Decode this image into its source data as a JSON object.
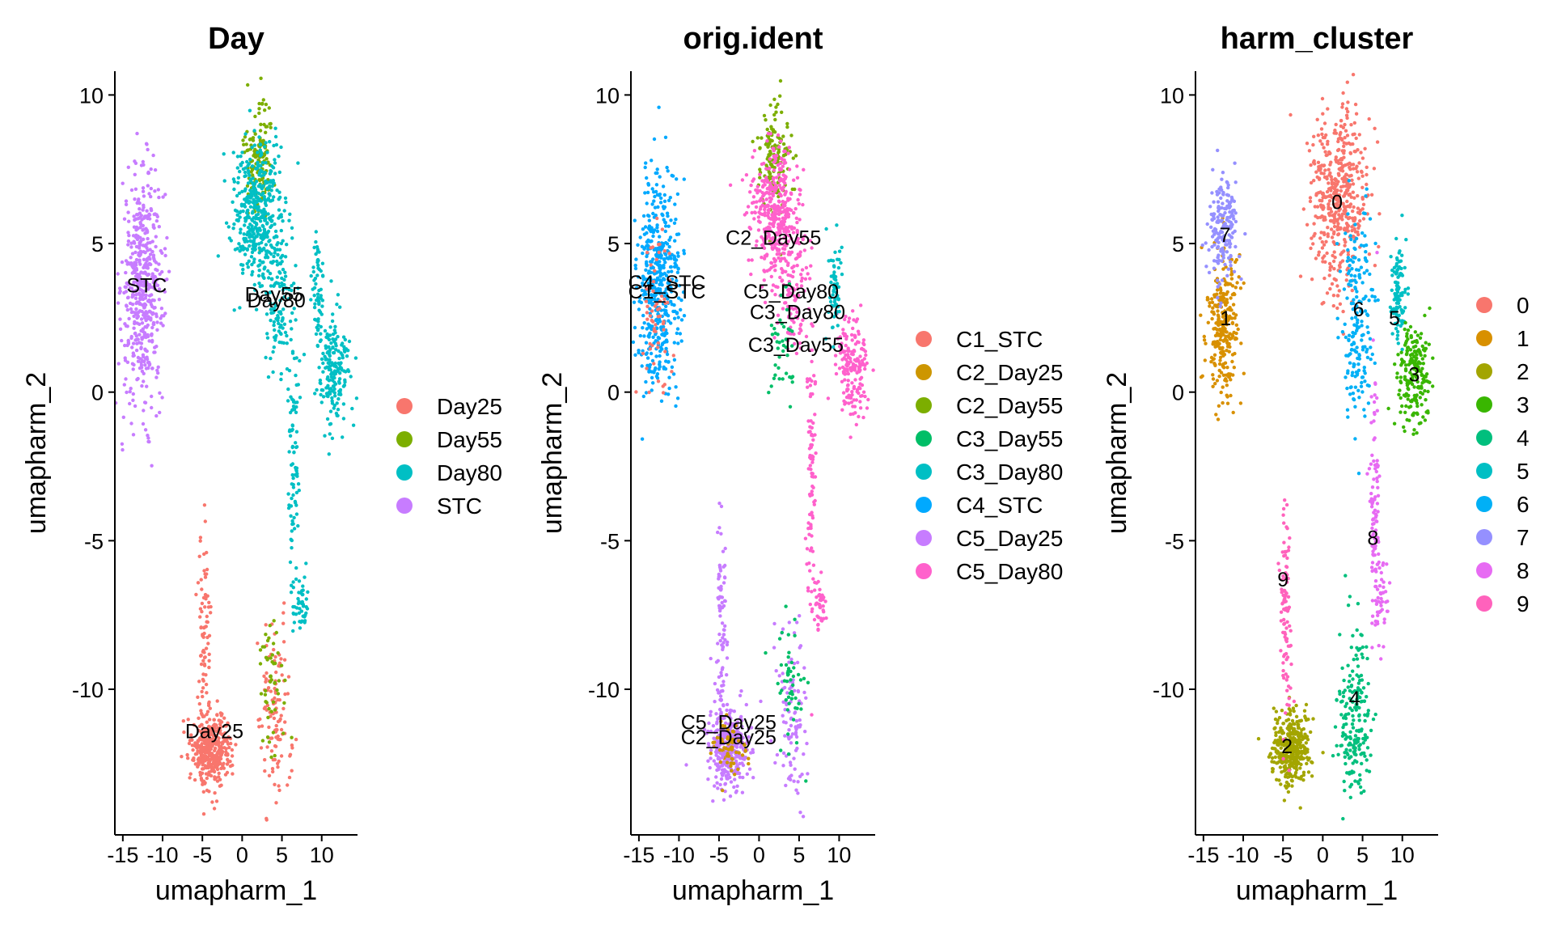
{
  "figure": {
    "x_label": "umapharm_1",
    "y_label": "umapharm_2"
  },
  "chart_data": [
    {
      "type": "scatter",
      "title": "Day",
      "xlabel": "umapharm_1",
      "ylabel": "umapharm_2",
      "xlim": [
        -16,
        14.5
      ],
      "ylim": [
        -14.9,
        10.8
      ],
      "xticks": [
        -15,
        -10,
        -5,
        0,
        5,
        10
      ],
      "yticks": [
        -10,
        -5,
        0,
        5,
        10
      ],
      "legend_position": "right",
      "legend": [
        {
          "name": "Day25",
          "color": "#F8766D"
        },
        {
          "name": "Day55",
          "color": "#7CAE00"
        },
        {
          "name": "Day80",
          "color": "#00BFC4"
        },
        {
          "name": "STC",
          "color": "#C77CFF"
        }
      ],
      "clusters": [
        {
          "group": "STC",
          "cx": -12.5,
          "cy": 3.5,
          "sx": 1.3,
          "sy": 1.9,
          "n": 520
        },
        {
          "group": "Day25",
          "cx": -3.8,
          "cy": -12.0,
          "sx": 1.2,
          "sy": 0.6,
          "n": 380
        },
        {
          "group": "Day25",
          "cx": -4.7,
          "cy": -8.5,
          "sx": 0.4,
          "sy": 1.9,
          "n": 90
        },
        {
          "group": "Day25",
          "cx": 4.2,
          "cy": -11.0,
          "sx": 1.0,
          "sy": 1.5,
          "n": 120
        },
        {
          "group": "Day55",
          "cx": 3.8,
          "cy": -9.8,
          "sx": 1.0,
          "sy": 1.2,
          "n": 50
        },
        {
          "group": "Day55",
          "cx": 2.0,
          "cy": 8.0,
          "sx": 0.9,
          "sy": 1.0,
          "n": 150
        },
        {
          "group": "Day80",
          "cx": 2.0,
          "cy": 6.0,
          "sx": 1.6,
          "sy": 1.2,
          "n": 420
        },
        {
          "group": "Day80",
          "cx": 4.5,
          "cy": 3.2,
          "sx": 0.9,
          "sy": 1.3,
          "n": 120
        },
        {
          "group": "Day80",
          "cx": 11.5,
          "cy": 0.8,
          "sx": 1.0,
          "sy": 0.9,
          "n": 190
        },
        {
          "group": "Day80",
          "cx": 9.5,
          "cy": 3.5,
          "sx": 0.4,
          "sy": 0.8,
          "n": 60
        },
        {
          "group": "Day80",
          "cx": 6.5,
          "cy": -3.0,
          "sx": 0.3,
          "sy": 2.5,
          "n": 90
        },
        {
          "group": "Day80",
          "cx": 7.5,
          "cy": -7.2,
          "sx": 0.4,
          "sy": 0.6,
          "n": 40
        }
      ],
      "labels": [
        {
          "text": "STC",
          "x": -12.0,
          "y": 3.6
        },
        {
          "text": "Day55",
          "x": 4.0,
          "y": 3.3
        },
        {
          "text": "Day80",
          "x": 4.3,
          "y": 3.1
        },
        {
          "text": "Day25",
          "x": -3.5,
          "y": -11.4
        }
      ]
    },
    {
      "type": "scatter",
      "title": "orig.ident",
      "xlabel": "umapharm_1",
      "ylabel": "umapharm_2",
      "xlim": [
        -16,
        14.5
      ],
      "ylim": [
        -14.9,
        10.8
      ],
      "xticks": [
        -15,
        -10,
        -5,
        0,
        5,
        10
      ],
      "yticks": [
        -10,
        -5,
        0,
        5,
        10
      ],
      "legend_position": "right",
      "legend": [
        {
          "name": "C1_STC",
          "color": "#F8766D"
        },
        {
          "name": "C2_Day25",
          "color": "#CD9600"
        },
        {
          "name": "C2_Day55",
          "color": "#7CAE00"
        },
        {
          "name": "C3_Day55",
          "color": "#00BE67"
        },
        {
          "name": "C3_Day80",
          "color": "#00BFC4"
        },
        {
          "name": "C4_STC",
          "color": "#00A9FF"
        },
        {
          "name": "C5_Day25",
          "color": "#C77CFF"
        },
        {
          "name": "C5_Day80",
          "color": "#FF61CC"
        }
      ],
      "clusters": [
        {
          "group": "C4_STC",
          "cx": -12.5,
          "cy": 3.5,
          "sx": 1.3,
          "sy": 1.9,
          "n": 480
        },
        {
          "group": "C1_STC",
          "cx": -12.5,
          "cy": 3.0,
          "sx": 1.0,
          "sy": 1.5,
          "n": 60
        },
        {
          "group": "C5_Day25",
          "cx": -3.8,
          "cy": -12.0,
          "sx": 1.2,
          "sy": 0.6,
          "n": 340
        },
        {
          "group": "C2_Day25",
          "cx": -3.8,
          "cy": -12.0,
          "sx": 1.0,
          "sy": 0.5,
          "n": 60
        },
        {
          "group": "C5_Day25",
          "cx": -4.7,
          "cy": -8.5,
          "sx": 0.4,
          "sy": 1.9,
          "n": 90
        },
        {
          "group": "C5_Day25",
          "cx": 4.2,
          "cy": -11.0,
          "sx": 1.0,
          "sy": 1.5,
          "n": 100
        },
        {
          "group": "C3_Day55",
          "cx": 3.8,
          "cy": -9.8,
          "sx": 1.0,
          "sy": 1.2,
          "n": 50
        },
        {
          "group": "C2_Day55",
          "cx": 2.0,
          "cy": 8.0,
          "sx": 0.9,
          "sy": 1.0,
          "n": 150
        },
        {
          "group": "C5_Day80",
          "cx": 2.0,
          "cy": 6.0,
          "sx": 1.6,
          "sy": 1.2,
          "n": 400
        },
        {
          "group": "C5_Day80",
          "cx": 4.5,
          "cy": 3.2,
          "sx": 0.9,
          "sy": 1.3,
          "n": 100
        },
        {
          "group": "C3_Day55",
          "cx": 3.0,
          "cy": 1.5,
          "sx": 0.8,
          "sy": 1.0,
          "n": 40
        },
        {
          "group": "C5_Day80",
          "cx": 11.5,
          "cy": 0.8,
          "sx": 1.0,
          "sy": 0.9,
          "n": 180
        },
        {
          "group": "C3_Day80",
          "cx": 9.5,
          "cy": 3.5,
          "sx": 0.4,
          "sy": 0.8,
          "n": 60
        },
        {
          "group": "C5_Day80",
          "cx": 6.5,
          "cy": -3.0,
          "sx": 0.3,
          "sy": 2.5,
          "n": 90
        },
        {
          "group": "C5_Day80",
          "cx": 7.5,
          "cy": -7.2,
          "sx": 0.4,
          "sy": 0.6,
          "n": 40
        }
      ],
      "labels": [
        {
          "text": "C2_Day55",
          "x": 1.8,
          "y": 5.2
        },
        {
          "text": "C4_STC",
          "x": -11.5,
          "y": 3.7
        },
        {
          "text": "C1_STC",
          "x": -11.5,
          "y": 3.4
        },
        {
          "text": "C5_Day80",
          "x": 4.0,
          "y": 3.4
        },
        {
          "text": "C3_Day80",
          "x": 4.8,
          "y": 2.7
        },
        {
          "text": "C3_Day55",
          "x": 4.6,
          "y": 1.6
        },
        {
          "text": "C5_Day25",
          "x": -3.8,
          "y": -11.1
        },
        {
          "text": "C2_Day25",
          "x": -3.8,
          "y": -11.6
        }
      ]
    },
    {
      "type": "scatter",
      "title": "harm_cluster",
      "xlabel": "umapharm_1",
      "ylabel": "umapharm_2",
      "xlim": [
        -16,
        14.5
      ],
      "ylim": [
        -14.9,
        10.8
      ],
      "xticks": [
        -15,
        -10,
        -5,
        0,
        5,
        10
      ],
      "yticks": [
        -10,
        -5,
        0,
        5,
        10
      ],
      "legend_position": "right",
      "legend": [
        {
          "name": "0",
          "color": "#F8766D"
        },
        {
          "name": "1",
          "color": "#D89000"
        },
        {
          "name": "2",
          "color": "#A3A500"
        },
        {
          "name": "3",
          "color": "#39B600"
        },
        {
          "name": "4",
          "color": "#00BF7D"
        },
        {
          "name": "5",
          "color": "#00BFC4"
        },
        {
          "name": "6",
          "color": "#00B0F6"
        },
        {
          "name": "7",
          "color": "#9590FF"
        },
        {
          "name": "8",
          "color": "#E76BF3"
        },
        {
          "name": "9",
          "color": "#FF62BC"
        }
      ],
      "clusters": [
        {
          "group": "0",
          "cx": 1.8,
          "cy": 6.5,
          "sx": 1.8,
          "sy": 1.6,
          "n": 480
        },
        {
          "group": "1",
          "cx": -12.5,
          "cy": 2.3,
          "sx": 1.1,
          "sy": 1.3,
          "n": 280
        },
        {
          "group": "7",
          "cx": -12.5,
          "cy": 5.5,
          "sx": 1.0,
          "sy": 0.9,
          "n": 180
        },
        {
          "group": "2",
          "cx": -4.0,
          "cy": -12.0,
          "sx": 1.2,
          "sy": 0.6,
          "n": 380
        },
        {
          "group": "9",
          "cx": -4.7,
          "cy": -7.5,
          "sx": 0.4,
          "sy": 1.9,
          "n": 100
        },
        {
          "group": "4",
          "cx": 4.0,
          "cy": -11.0,
          "sx": 1.0,
          "sy": 1.5,
          "n": 200
        },
        {
          "group": "6",
          "cx": 4.3,
          "cy": 2.5,
          "sx": 0.9,
          "sy": 1.8,
          "n": 190
        },
        {
          "group": "5",
          "cx": 9.5,
          "cy": 3.3,
          "sx": 0.5,
          "sy": 0.9,
          "n": 100
        },
        {
          "group": "3",
          "cx": 11.5,
          "cy": 0.5,
          "sx": 1.0,
          "sy": 0.9,
          "n": 200
        },
        {
          "group": "8",
          "cx": 6.5,
          "cy": -4.0,
          "sx": 0.3,
          "sy": 2.5,
          "n": 100
        },
        {
          "group": "8",
          "cx": 7.5,
          "cy": -7.0,
          "sx": 0.4,
          "sy": 0.6,
          "n": 40
        }
      ],
      "labels": [
        {
          "text": "0",
          "x": 1.8,
          "y": 6.4
        },
        {
          "text": "7",
          "x": -12.3,
          "y": 5.3
        },
        {
          "text": "1",
          "x": -12.2,
          "y": 2.5
        },
        {
          "text": "6",
          "x": 4.5,
          "y": 2.8
        },
        {
          "text": "5",
          "x": 9.0,
          "y": 2.5
        },
        {
          "text": "3",
          "x": 11.5,
          "y": 0.6
        },
        {
          "text": "8",
          "x": 6.3,
          "y": -4.9
        },
        {
          "text": "9",
          "x": -5.0,
          "y": -6.3
        },
        {
          "text": "4",
          "x": 4.0,
          "y": -10.3
        },
        {
          "text": "2",
          "x": -4.5,
          "y": -11.9
        }
      ]
    }
  ]
}
